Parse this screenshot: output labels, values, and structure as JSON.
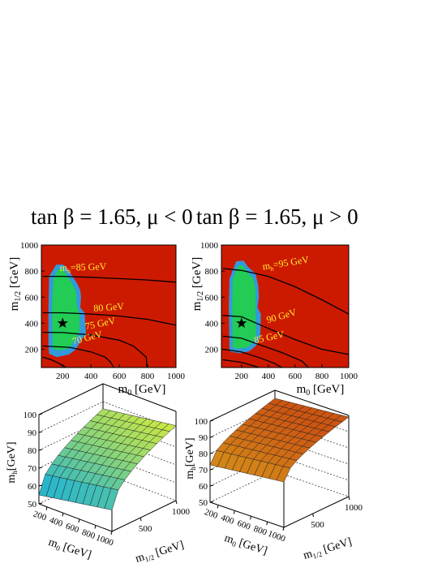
{
  "panels_top": [
    {
      "title": "tan β = 1.65, μ < 0",
      "xlabel": "m",
      "xlabel_sub": "0",
      "xlabel_unit": " [GeV]",
      "ylabel": "m",
      "ylabel_sub": "1/2",
      "ylabel_unit": " [GeV]"
    },
    {
      "title": "tan β = 1.65, μ > 0",
      "xlabel": "m",
      "xlabel_sub": "0",
      "xlabel_unit": " [GeV]",
      "ylabel": "m",
      "ylabel_sub": "1/2",
      "ylabel_unit": " [GeV]"
    }
  ],
  "panels_bottom": [
    {
      "zlabel": "m",
      "zlabel_sub": "h",
      "zlabel_unit": "[GeV]",
      "xlabel": "m",
      "xlabel_sub": "0",
      "xlabel_unit": " [GeV]",
      "ylabel": "m",
      "ylabel_sub": "1/2",
      "ylabel_unit": " [GeV]"
    },
    {
      "zlabel": "m",
      "zlabel_sub": "h",
      "zlabel_unit": "[GeV]",
      "xlabel": "m",
      "xlabel_sub": "0",
      "xlabel_unit": " [GeV]",
      "ylabel": "m",
      "ylabel_sub": "1/2",
      "ylabel_unit": " [GeV]"
    }
  ],
  "colors": {
    "excluded": "#cc1a00",
    "band": "#3399dd",
    "allowed": "#22cc55",
    "contour_label": "#ffee33",
    "marker": "#000000"
  },
  "chart_data": [
    {
      "type": "contour",
      "xlim": [
        50,
        1000
      ],
      "ylim": [
        60,
        1000
      ],
      "xticks": [
        200,
        400,
        600,
        800,
        1000
      ],
      "yticks": [
        200,
        400,
        600,
        800,
        1000
      ],
      "marker": {
        "x": 200,
        "y": 400,
        "symbol": "star"
      },
      "regions": [
        {
          "name": "band",
          "points": [
            [
              100,
              220
            ],
            [
              100,
              540
            ],
            [
              105,
              760
            ],
            [
              155,
              850
            ],
            [
              205,
              850
            ],
            [
              265,
              770
            ],
            [
              305,
              700
            ],
            [
              325,
              650
            ],
            [
              330,
              600
            ],
            [
              325,
              520
            ],
            [
              355,
              480
            ],
            [
              365,
              320
            ],
            [
              325,
              260
            ],
            [
              295,
              200
            ],
            [
              245,
              160
            ],
            [
              160,
              140
            ],
            [
              105,
              165
            ]
          ]
        },
        {
          "name": "allowed",
          "points": [
            [
              130,
              235
            ],
            [
              125,
              540
            ],
            [
              135,
              740
            ],
            [
              165,
              810
            ],
            [
              195,
              820
            ],
            [
              235,
              760
            ],
            [
              270,
              700
            ],
            [
              295,
              640
            ],
            [
              300,
              540
            ],
            [
              320,
              470
            ],
            [
              320,
              330
            ],
            [
              290,
              280
            ],
            [
              255,
              220
            ],
            [
              215,
              195
            ],
            [
              160,
              195
            ],
            [
              130,
              205
            ]
          ]
        }
      ],
      "contours": [
        {
          "label": "m_h=85 GeV",
          "points": [
            [
              60,
              760
            ],
            [
              200,
              760
            ],
            [
              400,
              752
            ],
            [
              600,
              742
            ],
            [
              800,
              732
            ],
            [
              1000,
              715
            ]
          ],
          "label_at": [
            180,
            800
          ],
          "label_angle": -2
        },
        {
          "label": "80 GeV",
          "points": [
            [
              60,
              480
            ],
            [
              200,
              480
            ],
            [
              400,
              470
            ],
            [
              600,
              455
            ],
            [
              800,
              430
            ],
            [
              1000,
              385
            ]
          ],
          "label_at": [
            420,
            490
          ],
          "label_angle": -4
        },
        {
          "label": "75 GeV",
          "points": [
            [
              60,
              330
            ],
            [
              200,
              328
            ],
            [
              400,
              310
            ],
            [
              600,
              270
            ],
            [
              700,
              225
            ],
            [
              790,
              140
            ]
          ],
          "label_at": [
            365,
            350
          ],
          "label_angle": -12
        },
        {
          "label": "70 GeV",
          "points": [
            [
              60,
              225
            ],
            [
              250,
              215
            ],
            [
              400,
              180
            ],
            [
              500,
              140
            ],
            [
              540,
              100
            ],
            [
              560,
              60
            ]
          ],
          "label_at": [
            275,
            235
          ],
          "label_angle": -15
        },
        {
          "label": "",
          "points": [
            [
              60,
              140
            ],
            [
              120,
              120
            ],
            [
              170,
              95
            ],
            [
              210,
              70
            ],
            [
              225,
              60
            ]
          ],
          "label_at": null,
          "label_angle": 0
        },
        {
          "label": "",
          "points": [
            [
              790,
              140
            ],
            [
              795,
              60
            ]
          ],
          "label_at": null,
          "label_angle": 0
        }
      ]
    },
    {
      "type": "contour",
      "xlim": [
        50,
        1000
      ],
      "ylim": [
        60,
        1000
      ],
      "xticks": [
        200,
        400,
        600,
        800,
        1000
      ],
      "yticks": [
        200,
        400,
        600,
        800,
        1000
      ],
      "marker": {
        "x": 200,
        "y": 400,
        "symbol": "star"
      },
      "regions": [
        {
          "name": "band",
          "points": [
            [
              110,
              200
            ],
            [
              105,
              530
            ],
            [
              110,
              740
            ],
            [
              160,
              875
            ],
            [
              215,
              880
            ],
            [
              250,
              830
            ],
            [
              305,
              780
            ],
            [
              325,
              690
            ],
            [
              330,
              600
            ],
            [
              320,
              520
            ],
            [
              345,
              470
            ],
            [
              340,
              300
            ],
            [
              310,
              230
            ],
            [
              260,
              185
            ],
            [
              190,
              170
            ],
            [
              120,
              180
            ]
          ]
        },
        {
          "name": "allowed",
          "points": [
            [
              135,
              215
            ],
            [
              130,
              530
            ],
            [
              135,
              740
            ],
            [
              175,
              840
            ],
            [
              210,
              845
            ],
            [
              245,
              790
            ],
            [
              290,
              740
            ],
            [
              305,
              650
            ],
            [
              305,
              540
            ],
            [
              305,
              470
            ],
            [
              310,
              310
            ],
            [
              285,
              255
            ],
            [
              245,
              215
            ],
            [
              180,
              205
            ],
            [
              140,
              210
            ]
          ]
        }
      ],
      "contours": [
        {
          "label": "m_h=95 GeV",
          "points": [
            [
              60,
              820
            ],
            [
              200,
              805
            ],
            [
              400,
              760
            ],
            [
              600,
              680
            ],
            [
              800,
              580
            ],
            [
              1000,
              470
            ]
          ],
          "label_at": [
            360,
            810
          ],
          "label_angle": -9
        },
        {
          "label": "90 GeV",
          "points": [
            [
              60,
              460
            ],
            [
              200,
              450
            ],
            [
              400,
              360
            ],
            [
              600,
              275
            ],
            [
              800,
              200
            ],
            [
              1000,
              160
            ]
          ],
          "label_at": [
            395,
            400
          ],
          "label_angle": -16
        },
        {
          "label": "85 GeV",
          "points": [
            [
              60,
              300
            ],
            [
              200,
              285
            ],
            [
              350,
              230
            ],
            [
              500,
              175
            ],
            [
              650,
              110
            ],
            [
              700,
              60
            ]
          ],
          "label_at": [
            300,
            245
          ],
          "label_angle": -12
        },
        {
          "label": "",
          "points": [
            [
              60,
              200
            ],
            [
              200,
              180
            ],
            [
              350,
              130
            ],
            [
              450,
              90
            ],
            [
              500,
              60
            ]
          ],
          "label_at": null,
          "label_angle": 0
        },
        {
          "label": "",
          "points": [
            [
              60,
              120
            ],
            [
              200,
              100
            ],
            [
              300,
              70
            ],
            [
              330,
              60
            ]
          ],
          "label_at": null,
          "label_angle": 0
        }
      ]
    },
    {
      "type": "surface3d",
      "xticks": [
        200,
        400,
        600,
        800,
        1000
      ],
      "yticks": [
        500,
        1000
      ],
      "zticks": [
        50,
        60,
        70,
        80,
        90,
        100
      ],
      "xlim": [
        100,
        1000
      ],
      "ylim": [
        100,
        1000
      ],
      "zlim": [
        50,
        100
      ],
      "surface_points": [
        [
          100,
          100,
          55
        ],
        [
          1000,
          100,
          62
        ],
        [
          100,
          1000,
          86
        ],
        [
          1000,
          1000,
          92
        ]
      ],
      "color_low": "#00aaee",
      "color_high": "#ddee33"
    },
    {
      "type": "surface3d",
      "xticks": [
        200,
        400,
        600,
        800,
        1000
      ],
      "yticks": [
        500,
        1000
      ],
      "zticks": [
        50,
        60,
        70,
        80,
        90,
        100
      ],
      "xlim": [
        100,
        1000
      ],
      "ylim": [
        100,
        1000
      ],
      "zlim": [
        50,
        100
      ],
      "surface_points": [
        [
          100,
          100,
          73
        ],
        [
          1000,
          100,
          78
        ],
        [
          100,
          1000,
          95
        ],
        [
          1000,
          1000,
          99
        ]
      ],
      "color_low": "#ddcc22",
      "color_high": "#cc5511"
    }
  ]
}
